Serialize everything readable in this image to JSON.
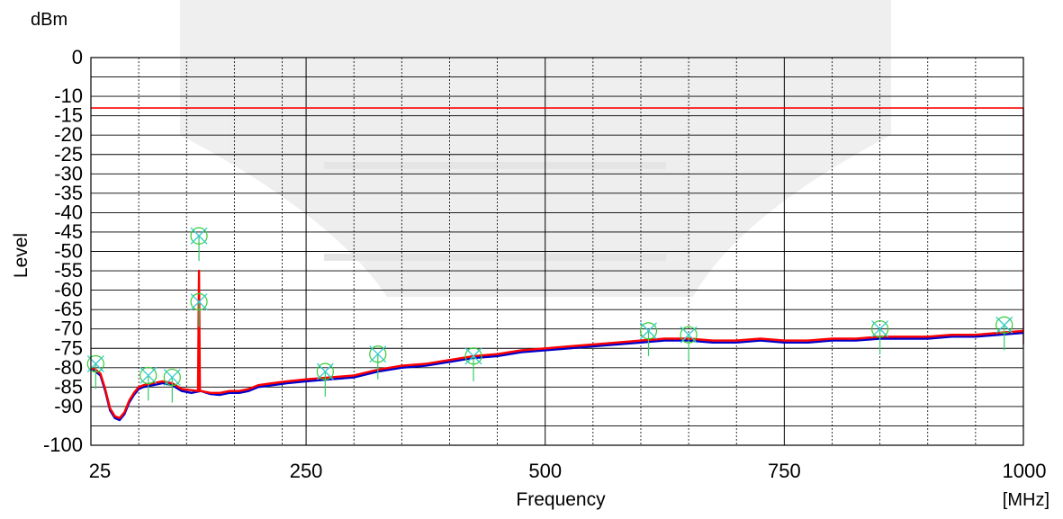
{
  "chart_data": {
    "type": "line",
    "title": "",
    "xlabel": "Frequency",
    "ylabel": "Level",
    "y_unit": "dBm",
    "x_unit": "[MHz]",
    "xlim": [
      25,
      1000
    ],
    "ylim": [
      -100,
      0
    ],
    "x_tick_labels": [
      {
        "value": 25,
        "label": "25"
      },
      {
        "value": 250,
        "label": "250"
      },
      {
        "value": 500,
        "label": "500"
      },
      {
        "value": 750,
        "label": "750"
      },
      {
        "value": 1000,
        "label": "1000"
      }
    ],
    "y_tick_labels": [
      {
        "value": 0,
        "label": "0"
      },
      {
        "value": -10,
        "label": "-10"
      },
      {
        "value": -15,
        "label": "-15"
      },
      {
        "value": -20,
        "label": "-20"
      },
      {
        "value": -25,
        "label": "-25"
      },
      {
        "value": -30,
        "label": "-30"
      },
      {
        "value": -35,
        "label": "-35"
      },
      {
        "value": -40,
        "label": "-40"
      },
      {
        "value": -45,
        "label": "-45"
      },
      {
        "value": -50,
        "label": "-50"
      },
      {
        "value": -55,
        "label": "-55"
      },
      {
        "value": -60,
        "label": "-60"
      },
      {
        "value": -65,
        "label": "-65"
      },
      {
        "value": -70,
        "label": "-70"
      },
      {
        "value": -75,
        "label": "-75"
      },
      {
        "value": -80,
        "label": "-80"
      },
      {
        "value": -85,
        "label": "-85"
      },
      {
        "value": -90,
        "label": "-90"
      },
      {
        "value": -100,
        "label": "-100"
      }
    ],
    "x_minor_gridlines": [
      75,
      125,
      175,
      225,
      300,
      350,
      400,
      450,
      550,
      600,
      650,
      700,
      800,
      850,
      900,
      950
    ],
    "x_major_gridlines": [
      250,
      500,
      750
    ],
    "y_gridlines": [
      -95,
      -90,
      -85,
      -80,
      -75,
      -70,
      -65,
      -60,
      -55,
      -50,
      -45,
      -40,
      -35,
      -30,
      -25,
      -20,
      -15,
      -10,
      -5
    ],
    "grid": true,
    "limit_line": {
      "value": -13,
      "color": "#ff0000"
    },
    "series": [
      {
        "color": "#0000cc",
        "x": [
          25,
          30,
          35,
          40,
          45,
          50,
          55,
          60,
          65,
          70,
          75,
          80,
          90,
          100,
          110,
          120,
          130,
          140,
          150,
          160,
          170,
          180,
          190,
          200,
          215,
          230,
          250,
          275,
          300,
          325,
          350,
          375,
          400,
          425,
          450,
          475,
          500,
          525,
          550,
          575,
          600,
          625,
          650,
          675,
          700,
          725,
          750,
          775,
          800,
          825,
          850,
          875,
          900,
          925,
          950,
          975,
          1000
        ],
        "values": [
          -80,
          -81,
          -82,
          -86,
          -91,
          -93,
          -93.5,
          -92,
          -89,
          -87,
          -85.5,
          -85,
          -84.5,
          -84,
          -84.5,
          -86,
          -86.5,
          -86,
          -86.8,
          -87,
          -86.5,
          -86.5,
          -86,
          -85,
          -84.5,
          -84,
          -83.5,
          -83,
          -82.5,
          -81,
          -80,
          -79.5,
          -78.5,
          -77.5,
          -77,
          -76,
          -75.5,
          -75,
          -74.5,
          -74,
          -73.5,
          -73,
          -73,
          -73.5,
          -73.5,
          -73,
          -73.5,
          -73.5,
          -73,
          -73,
          -72.5,
          -72.5,
          -72.5,
          -72,
          -72,
          -71.5,
          -71
        ]
      },
      {
        "color": "#ff0000",
        "x": [
          25,
          30,
          35,
          40,
          45,
          50,
          55,
          60,
          65,
          70,
          75,
          80,
          90,
          100,
          110,
          120,
          130,
          137,
          138,
          139,
          140,
          150,
          160,
          170,
          180,
          190,
          200,
          215,
          230,
          250,
          275,
          300,
          325,
          350,
          375,
          400,
          425,
          450,
          475,
          500,
          525,
          550,
          575,
          600,
          625,
          650,
          675,
          700,
          725,
          750,
          775,
          800,
          825,
          850,
          875,
          900,
          925,
          950,
          975,
          1000
        ],
        "values": [
          -80,
          -80.5,
          -81.5,
          -85.5,
          -90.5,
          -92.5,
          -93,
          -91.5,
          -88.5,
          -86.5,
          -85,
          -84.5,
          -84,
          -83.5,
          -84,
          -85.5,
          -85.8,
          -86,
          -55,
          -86,
          -86,
          -86.5,
          -86.5,
          -86,
          -86,
          -85.5,
          -84.5,
          -84,
          -83.5,
          -83,
          -82.5,
          -82,
          -80.5,
          -79.5,
          -79,
          -78,
          -77,
          -76.5,
          -75.5,
          -75,
          -74.5,
          -74,
          -73.5,
          -73,
          -72.5,
          -72.5,
          -73,
          -73,
          -72.5,
          -73,
          -73,
          -72.5,
          -72.5,
          -72,
          -72,
          -72,
          -71.5,
          -71.5,
          -71,
          -70.5
        ]
      }
    ],
    "peak_markers": [
      {
        "x": 30,
        "y": -79
      },
      {
        "x": 85,
        "y": -82
      },
      {
        "x": 110,
        "y": -82.5
      },
      {
        "x": 138,
        "y": -46
      },
      {
        "x": 138,
        "y": -63
      },
      {
        "x": 270,
        "y": -81
      },
      {
        "x": 325,
        "y": -76.5
      },
      {
        "x": 425,
        "y": -77
      },
      {
        "x": 608,
        "y": -70.5
      },
      {
        "x": 650,
        "y": -71.5
      },
      {
        "x": 850,
        "y": -70
      },
      {
        "x": 980,
        "y": -69
      }
    ]
  }
}
